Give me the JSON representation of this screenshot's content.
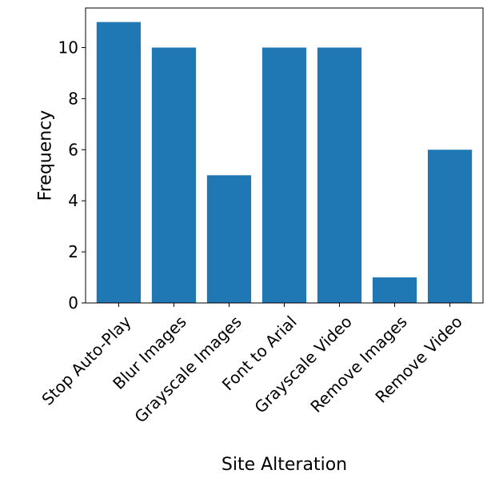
{
  "chart_data": {
    "type": "bar",
    "title": "",
    "xlabel": "Site Alteration",
    "ylabel": "Frequency",
    "categories": [
      "Stop Auto-Play",
      "Blur Images",
      "Grayscale Images",
      "Font to Arial",
      "Grayscale Video",
      "Remove Images",
      "Remove Video"
    ],
    "values": [
      11,
      10,
      5,
      10,
      10,
      1,
      6
    ],
    "ylim": [
      0,
      11.55
    ],
    "yticks": [
      0,
      2,
      4,
      6,
      8,
      10
    ],
    "grid": false,
    "legend": "none",
    "bar_color": "#1f77b4",
    "x_tick_rotation_deg": 45
  }
}
